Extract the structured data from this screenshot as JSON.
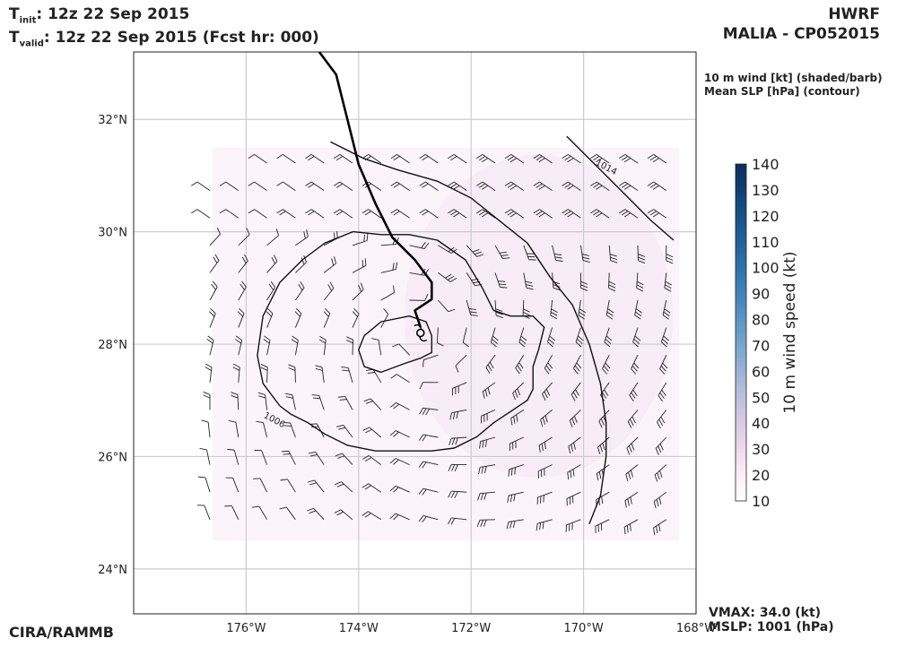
{
  "header": {
    "t_label": "T",
    "init_sub": "init",
    "valid_sub": "valid",
    "init_value": ":  12z 22 Sep 2015",
    "valid_value": ": 12z 22 Sep 2015 (Fcst hr: 000)",
    "model": "HWRF",
    "storm": "MALIA - CP052015"
  },
  "legend": {
    "line1": "10 m wind [kt] (shaded/barb)",
    "line2": "Mean SLP [hPa] (contour)"
  },
  "footer": {
    "credit": "CIRA/RAMMB",
    "vmax": "VMAX:  34.0 (kt)",
    "mslp": "MSLP: 1001 (hPa)"
  },
  "chart_data": {
    "type": "map",
    "title": "HWRF MALIA - CP052015",
    "lon_range": [
      -178.0,
      -168.0
    ],
    "lat_range": [
      23.2,
      33.2
    ],
    "x_ticks": [
      -176,
      -174,
      -172,
      -170,
      -168
    ],
    "x_tick_labels": [
      "176°W",
      "174°W",
      "172°W",
      "170°W",
      "168°W"
    ],
    "y_ticks": [
      24,
      26,
      28,
      30,
      32
    ],
    "y_tick_labels": [
      "24°N",
      "26°N",
      "28°N",
      "30°N",
      "32°N"
    ],
    "colorbar": {
      "label": "10 m wind speed (kt)",
      "min": 10,
      "max": 140,
      "ticks": [
        10,
        20,
        30,
        40,
        50,
        60,
        70,
        80,
        90,
        100,
        110,
        120,
        130,
        140
      ],
      "colors": [
        "#ffffff",
        "#fcedf5",
        "#ecd6ea",
        "#d3c8e2",
        "#b3bcdb",
        "#8eadd2",
        "#6a9cc8",
        "#4b8abd",
        "#3378b1",
        "#24659f",
        "#1a528a",
        "#123f73",
        "#0b2d5c"
      ]
    },
    "contours": [
      {
        "label": "1006",
        "label_lon": -175.7,
        "label_lat": 26.7,
        "points": [
          [
            -175.4,
            26.9
          ],
          [
            -175.7,
            27.3
          ],
          [
            -175.8,
            27.8
          ],
          [
            -175.7,
            28.5
          ],
          [
            -175.4,
            29.1
          ],
          [
            -175.0,
            29.5
          ],
          [
            -174.6,
            29.8
          ],
          [
            -174.1,
            30.0
          ],
          [
            -173.6,
            29.95
          ],
          [
            -173.1,
            29.95
          ],
          [
            -172.6,
            29.85
          ],
          [
            -172.1,
            29.5
          ],
          [
            -171.8,
            29.0
          ],
          [
            -171.6,
            28.6
          ],
          [
            -171.3,
            28.5
          ],
          [
            -170.9,
            28.5
          ],
          [
            -170.7,
            28.3
          ],
          [
            -170.8,
            27.9
          ],
          [
            -170.9,
            27.6
          ],
          [
            -170.9,
            27.2
          ],
          [
            -171.0,
            27.0
          ],
          [
            -171.3,
            26.8
          ],
          [
            -171.6,
            26.6
          ],
          [
            -171.9,
            26.35
          ],
          [
            -172.3,
            26.15
          ],
          [
            -172.7,
            26.1
          ],
          [
            -173.2,
            26.1
          ],
          [
            -173.7,
            26.1
          ],
          [
            -174.2,
            26.2
          ],
          [
            -174.6,
            26.4
          ],
          [
            -174.9,
            26.6
          ],
          [
            -175.2,
            26.75
          ],
          [
            -175.4,
            26.9
          ]
        ]
      },
      {
        "label": "",
        "label_lon": 0,
        "label_lat": 0,
        "points": [
          [
            -173.6,
            27.5
          ],
          [
            -173.9,
            27.6
          ],
          [
            -174.0,
            27.9
          ],
          [
            -173.9,
            28.15
          ],
          [
            -173.6,
            28.4
          ],
          [
            -173.1,
            28.5
          ],
          [
            -172.8,
            28.4
          ],
          [
            -172.7,
            28.15
          ],
          [
            -172.7,
            27.85
          ],
          [
            -172.9,
            27.75
          ],
          [
            -173.2,
            27.65
          ],
          [
            -173.6,
            27.5
          ]
        ]
      },
      {
        "label": "",
        "label_lon": 0,
        "label_lat": 0,
        "points": [
          [
            -174.5,
            31.6
          ],
          [
            -173.9,
            31.3
          ],
          [
            -173.3,
            31.1
          ],
          [
            -172.6,
            30.9
          ],
          [
            -172.0,
            30.6
          ],
          [
            -171.5,
            30.2
          ],
          [
            -171.0,
            29.8
          ],
          [
            -170.6,
            29.2
          ],
          [
            -170.2,
            28.7
          ],
          [
            -169.9,
            28.0
          ],
          [
            -169.7,
            27.3
          ],
          [
            -169.6,
            26.6
          ],
          [
            -169.6,
            26.0
          ],
          [
            -169.7,
            25.3
          ],
          [
            -169.9,
            24.8
          ]
        ]
      },
      {
        "label": "1014",
        "label_lon": -169.8,
        "label_lat": 31.2,
        "points": [
          [
            -170.3,
            31.7
          ],
          [
            -170.0,
            31.4
          ],
          [
            -169.6,
            31.0
          ],
          [
            -169.2,
            30.6
          ],
          [
            -168.8,
            30.2
          ],
          [
            -168.4,
            29.85
          ]
        ]
      }
    ],
    "track": [
      [
        -174.7,
        33.2
      ],
      [
        -174.4,
        32.8
      ],
      [
        -174.2,
        32.0
      ],
      [
        -174.0,
        31.2
      ],
      [
        -173.7,
        30.5
      ],
      [
        -173.4,
        29.9
      ],
      [
        -173.0,
        29.5
      ],
      [
        -172.7,
        29.1
      ],
      [
        -172.7,
        28.8
      ],
      [
        -173.0,
        28.6
      ],
      [
        -172.9,
        28.3
      ]
    ],
    "center_lon": -172.9,
    "center_lat": 28.2
  }
}
